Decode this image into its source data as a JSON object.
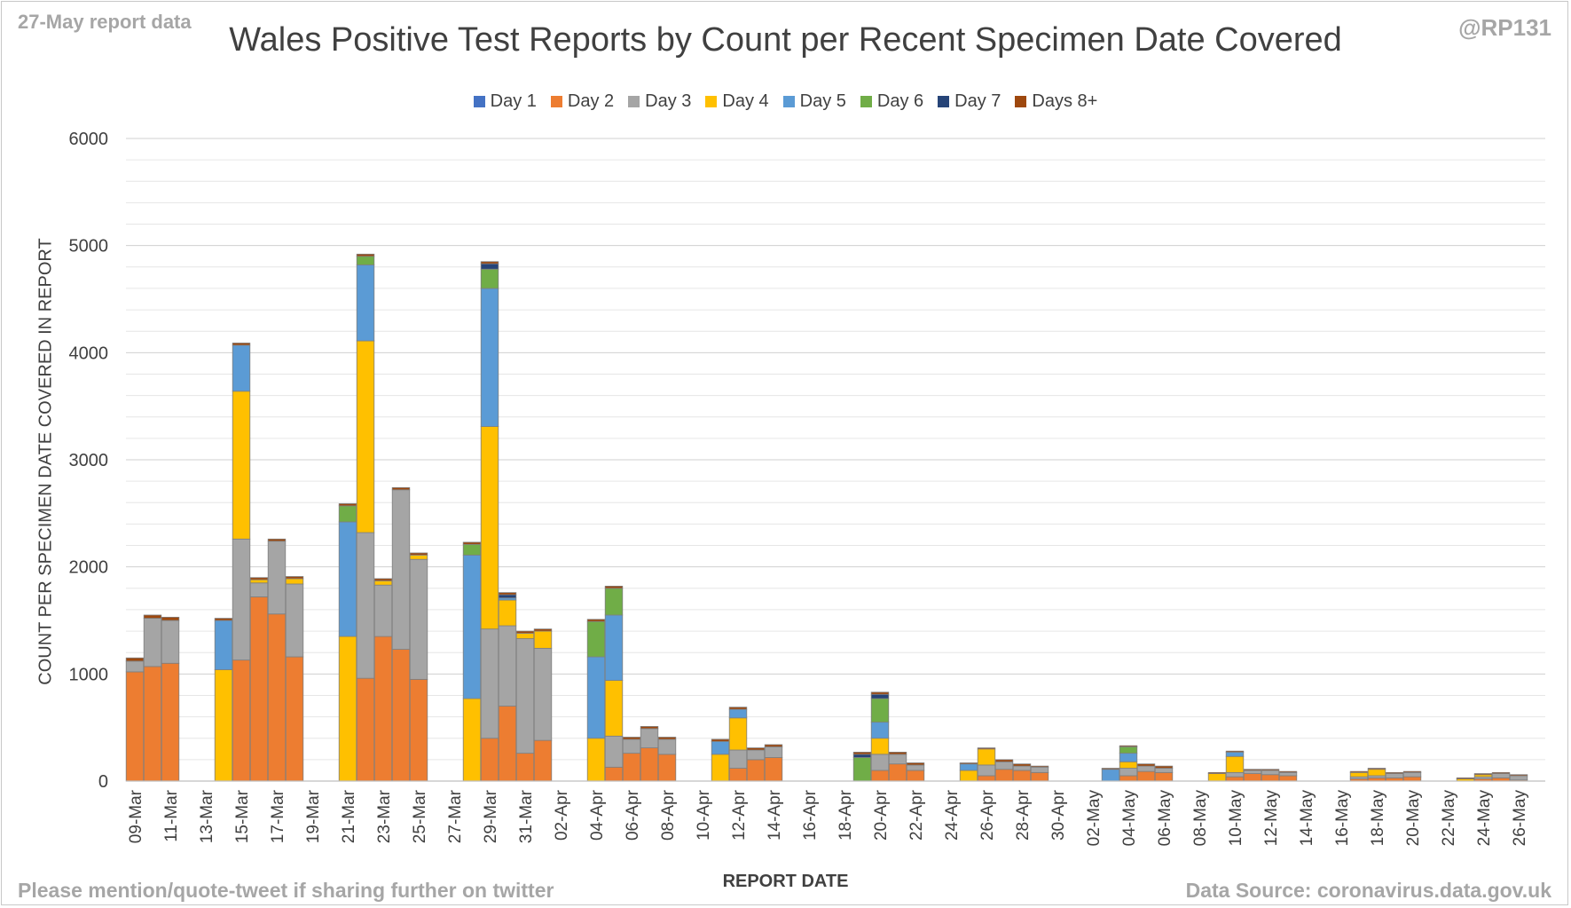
{
  "header": {
    "report_label": "27-May report data",
    "handle": "@RP131"
  },
  "footer": {
    "share_note": "Please mention/quote-tweet if sharing further on twitter",
    "source": "Data Source: coronavirus.data.gov.uk"
  },
  "colors": {
    "day1": "#4472c4",
    "day2": "#ed7d31",
    "day3": "#a5a5a5",
    "day4": "#ffc000",
    "day5": "#5b9bd5",
    "day6": "#70ad47",
    "day7": "#264478",
    "day8plus": "#9e480e"
  },
  "chart_data": {
    "type": "bar",
    "stacked": true,
    "title": "Wales Positive Test Reports by Count per Recent Specimen Date Covered",
    "xlabel": "REPORT DATE",
    "ylabel": "COUNT PER SPECIMEN DATE COVERED IN REPORT",
    "ylim": [
      0,
      6000
    ],
    "yticks": [
      0,
      1000,
      2000,
      3000,
      4000,
      5000,
      6000
    ],
    "grid": true,
    "legend_position": "top",
    "categories": [
      "09-Mar",
      "10-Mar",
      "11-Mar",
      "12-Mar",
      "13-Mar",
      "14-Mar",
      "15-Mar",
      "16-Mar",
      "17-Mar",
      "18-Mar",
      "19-Mar",
      "20-Mar",
      "21-Mar",
      "22-Mar",
      "23-Mar",
      "24-Mar",
      "25-Mar",
      "26-Mar",
      "27-Mar",
      "28-Mar",
      "29-Mar",
      "30-Mar",
      "31-Mar",
      "01-Apr",
      "02-Apr",
      "03-Apr",
      "04-Apr",
      "05-Apr",
      "06-Apr",
      "07-Apr",
      "08-Apr",
      "09-Apr",
      "10-Apr",
      "11-Apr",
      "12-Apr",
      "13-Apr",
      "14-Apr",
      "15-Apr",
      "16-Apr",
      "17-Apr",
      "18-Apr",
      "19-Apr",
      "20-Apr",
      "21-Apr",
      "22-Apr",
      "23-Apr",
      "24-Apr",
      "25-Apr",
      "26-Apr",
      "27-Apr",
      "28-Apr",
      "29-Apr",
      "30-Apr",
      "01-May",
      "02-May",
      "03-May",
      "04-May",
      "05-May",
      "06-May",
      "07-May",
      "08-May",
      "09-May",
      "10-May",
      "11-May",
      "12-May",
      "13-May",
      "14-May",
      "15-May",
      "16-May",
      "17-May",
      "18-May",
      "19-May",
      "20-May",
      "21-May",
      "22-May",
      "23-May",
      "24-May",
      "25-May",
      "26-May",
      "27-May"
    ],
    "tick_labels": [
      "09-Mar",
      "11-Mar",
      "13-Mar",
      "15-Mar",
      "17-Mar",
      "19-Mar",
      "21-Mar",
      "23-Mar",
      "25-Mar",
      "27-Mar",
      "29-Mar",
      "31-Mar",
      "02-Apr",
      "04-Apr",
      "06-Apr",
      "08-Apr",
      "10-Apr",
      "12-Apr",
      "14-Apr",
      "16-Apr",
      "18-Apr",
      "20-Apr",
      "22-Apr",
      "24-Apr",
      "26-Apr",
      "28-Apr",
      "30-Apr",
      "02-May",
      "04-May",
      "06-May",
      "08-May",
      "10-May",
      "12-May",
      "14-May",
      "16-May",
      "18-May",
      "20-May",
      "22-May",
      "24-May",
      "26-May"
    ],
    "series": [
      {
        "name": "Day 1",
        "values": [
          0,
          0,
          0,
          0,
          0,
          0,
          0,
          0,
          0,
          0,
          0,
          0,
          0,
          0,
          0,
          0,
          0,
          0,
          0,
          0,
          0,
          0,
          0,
          0,
          0,
          0,
          0,
          0,
          0,
          0,
          0,
          0,
          0,
          0,
          0,
          0,
          0,
          0,
          0,
          0,
          0,
          0,
          0,
          0,
          0,
          0,
          0,
          0,
          0,
          0,
          0,
          0,
          0,
          0,
          0,
          0,
          0,
          0,
          0,
          0,
          0,
          0,
          0,
          0,
          0,
          0,
          0,
          0,
          0,
          0,
          0,
          0,
          0,
          0,
          0,
          0,
          0,
          0,
          0,
          0
        ]
      },
      {
        "name": "Day 2",
        "values": [
          1020,
          1070,
          1100,
          0,
          0,
          0,
          1130,
          1720,
          1560,
          1160,
          0,
          0,
          0,
          960,
          1350,
          1230,
          950,
          0,
          0,
          0,
          400,
          700,
          260,
          380,
          0,
          0,
          0,
          130,
          260,
          310,
          250,
          0,
          0,
          0,
          120,
          200,
          220,
          0,
          0,
          0,
          0,
          0,
          100,
          160,
          100,
          0,
          0,
          0,
          50,
          110,
          100,
          80,
          0,
          0,
          0,
          0,
          50,
          90,
          80,
          0,
          0,
          0,
          40,
          70,
          60,
          50,
          0,
          0,
          0,
          20,
          30,
          30,
          40,
          0,
          0,
          0,
          20,
          30,
          10,
          0
        ]
      },
      {
        "name": "Day 3",
        "values": [
          100,
          450,
          400,
          0,
          0,
          0,
          1130,
          130,
          680,
          680,
          0,
          0,
          0,
          1360,
          480,
          1490,
          1120,
          0,
          0,
          0,
          1020,
          750,
          1070,
          860,
          0,
          0,
          0,
          290,
          130,
          180,
          140,
          0,
          0,
          0,
          170,
          90,
          100,
          0,
          0,
          0,
          0,
          0,
          150,
          90,
          50,
          0,
          0,
          0,
          100,
          70,
          40,
          50,
          0,
          0,
          0,
          0,
          70,
          50,
          40,
          0,
          0,
          0,
          40,
          30,
          40,
          30,
          0,
          0,
          0,
          20,
          20,
          40,
          40,
          0,
          0,
          0,
          20,
          40,
          40,
          0
        ]
      },
      {
        "name": "Day 4",
        "values": [
          0,
          0,
          0,
          0,
          0,
          1040,
          1380,
          30,
          0,
          50,
          0,
          0,
          1350,
          1790,
          40,
          0,
          40,
          0,
          0,
          770,
          1890,
          240,
          50,
          160,
          0,
          0,
          400,
          520,
          0,
          0,
          0,
          0,
          0,
          250,
          300,
          0,
          0,
          0,
          0,
          0,
          0,
          0,
          150,
          0,
          0,
          0,
          0,
          100,
          150,
          0,
          0,
          0,
          0,
          0,
          0,
          0,
          60,
          0,
          0,
          0,
          0,
          70,
          150,
          0,
          0,
          0,
          0,
          0,
          0,
          40,
          60,
          0,
          0,
          0,
          0,
          20,
          20,
          0,
          0,
          0
        ]
      },
      {
        "name": "Day 5",
        "values": [
          0,
          0,
          0,
          0,
          0,
          460,
          430,
          0,
          0,
          0,
          0,
          0,
          1070,
          710,
          0,
          0,
          0,
          0,
          0,
          1340,
          1290,
          20,
          0,
          0,
          0,
          0,
          760,
          610,
          0,
          0,
          0,
          0,
          0,
          120,
          80,
          0,
          0,
          0,
          0,
          0,
          0,
          0,
          150,
          0,
          0,
          0,
          0,
          60,
          0,
          0,
          0,
          0,
          0,
          0,
          0,
          110,
          80,
          0,
          0,
          0,
          0,
          0,
          40,
          0,
          0,
          0,
          0,
          0,
          0,
          0,
          0,
          0,
          0,
          0,
          0,
          0,
          0,
          0,
          0,
          0
        ]
      },
      {
        "name": "Day 6",
        "values": [
          0,
          0,
          0,
          0,
          0,
          0,
          0,
          0,
          0,
          0,
          0,
          0,
          150,
          80,
          0,
          0,
          0,
          0,
          0,
          100,
          180,
          0,
          0,
          0,
          0,
          0,
          330,
          250,
          0,
          0,
          0,
          0,
          0,
          0,
          0,
          0,
          0,
          0,
          0,
          0,
          0,
          220,
          220,
          0,
          0,
          0,
          0,
          0,
          0,
          0,
          0,
          0,
          0,
          0,
          0,
          0,
          60,
          0,
          0,
          0,
          0,
          0,
          0,
          0,
          0,
          0,
          0,
          0,
          0,
          0,
          0,
          0,
          0,
          0,
          0,
          0,
          0,
          0,
          0,
          0
        ]
      },
      {
        "name": "Day 7",
        "values": [
          0,
          0,
          0,
          0,
          0,
          0,
          0,
          0,
          0,
          0,
          0,
          0,
          0,
          0,
          0,
          0,
          0,
          0,
          0,
          0,
          50,
          30,
          0,
          0,
          0,
          0,
          0,
          0,
          0,
          0,
          0,
          0,
          0,
          0,
          0,
          0,
          0,
          0,
          0,
          0,
          0,
          30,
          40,
          0,
          0,
          0,
          0,
          0,
          0,
          0,
          0,
          0,
          0,
          0,
          0,
          0,
          0,
          0,
          0,
          0,
          0,
          0,
          0,
          0,
          0,
          0,
          0,
          0,
          0,
          0,
          0,
          0,
          0,
          0,
          0,
          0,
          0,
          0,
          0,
          0
        ]
      },
      {
        "name": "Days 8+",
        "values": [
          30,
          30,
          30,
          0,
          0,
          20,
          20,
          20,
          20,
          20,
          0,
          0,
          20,
          20,
          20,
          20,
          20,
          0,
          0,
          20,
          20,
          20,
          20,
          20,
          0,
          0,
          20,
          20,
          20,
          20,
          20,
          0,
          0,
          20,
          20,
          20,
          20,
          0,
          0,
          0,
          0,
          20,
          20,
          20,
          20,
          0,
          0,
          10,
          10,
          20,
          20,
          10,
          0,
          0,
          0,
          10,
          10,
          20,
          20,
          0,
          0,
          10,
          10,
          10,
          10,
          10,
          0,
          0,
          0,
          10,
          10,
          10,
          10,
          0,
          0,
          10,
          10,
          10,
          10,
          0
        ]
      }
    ]
  }
}
